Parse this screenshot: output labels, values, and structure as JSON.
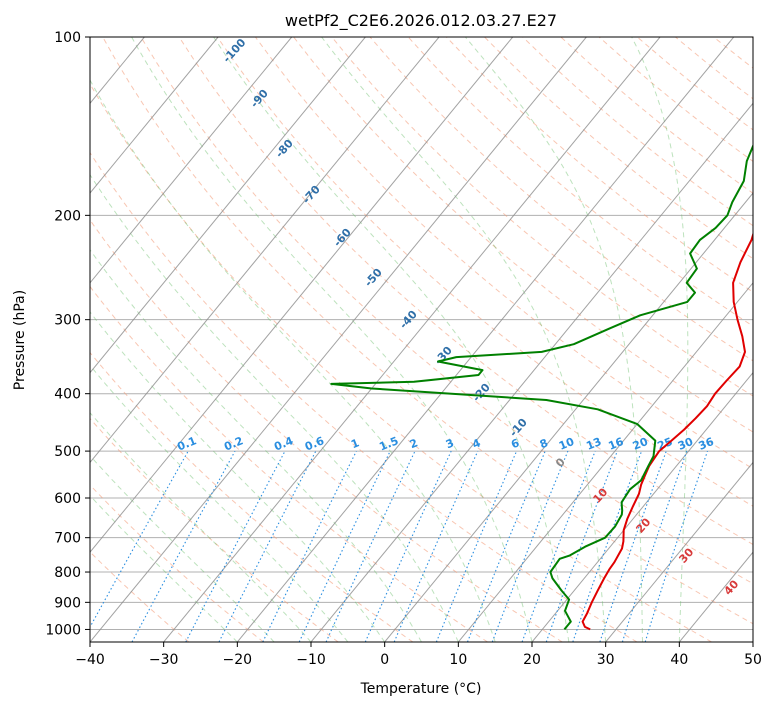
{
  "chart_data": {
    "type": "line",
    "title": "wetPf2_C2E6.2026.012.03.27.E27",
    "xlabel": "Temperature (°C)",
    "ylabel": "Pressure (hPa)",
    "xlim": [
      -40,
      50
    ],
    "ylim": [
      1050,
      100
    ],
    "x_ticks": [
      "−40",
      "−30",
      "−20",
      "−10",
      "0",
      "10",
      "20",
      "30",
      "40",
      "50"
    ],
    "y_ticks": [
      "100",
      "200",
      "300",
      "400",
      "500",
      "600",
      "700",
      "800",
      "900",
      "1000"
    ],
    "series": [
      {
        "name": "Temperature",
        "color": "#e00000",
        "points": [
          [
            26.5,
            1000
          ],
          [
            25.5,
            990
          ],
          [
            24.6,
            970
          ],
          [
            24.3,
            940
          ],
          [
            23.7,
            900
          ],
          [
            23.2,
            860
          ],
          [
            22.7,
            820
          ],
          [
            22.4,
            790
          ],
          [
            22.3,
            770
          ],
          [
            21.8,
            730
          ],
          [
            21.2,
            710
          ],
          [
            20.0,
            680
          ],
          [
            19.2,
            650
          ],
          [
            18.6,
            620
          ],
          [
            18.0,
            590
          ],
          [
            17.3,
            570
          ],
          [
            16.8,
            550
          ],
          [
            16.3,
            530
          ],
          [
            16.0,
            500
          ],
          [
            16.5,
            480
          ],
          [
            17.0,
            460
          ],
          [
            17.3,
            440
          ],
          [
            17.5,
            420
          ],
          [
            17.2,
            400
          ],
          [
            17.3,
            380
          ],
          [
            17.5,
            360
          ],
          [
            16.6,
            340
          ],
          [
            14.5,
            320
          ],
          [
            12.0,
            300
          ],
          [
            9.5,
            280
          ],
          [
            7.3,
            260
          ],
          [
            6.0,
            240
          ],
          [
            5.0,
            220
          ],
          [
            3.3,
            200
          ],
          [
            2.2,
            190
          ],
          [
            0.8,
            175
          ],
          [
            -0.6,
            160
          ],
          [
            -1.3,
            150
          ],
          [
            0.0,
            140
          ],
          [
            1.6,
            130
          ],
          [
            2.3,
            120
          ],
          [
            1.9,
            115
          ],
          [
            1.5,
            110
          ],
          [
            1.1,
            105
          ],
          [
            1.3,
            100
          ]
        ]
      },
      {
        "name": "Dewpoint",
        "color": "#008000",
        "points": [
          [
            23.0,
            1000
          ],
          [
            23.0,
            970
          ],
          [
            22.0,
            950
          ],
          [
            21.0,
            930
          ],
          [
            20.3,
            890
          ],
          [
            18.3,
            860
          ],
          [
            15.7,
            820
          ],
          [
            14.7,
            800
          ],
          [
            14.6,
            780
          ],
          [
            14.5,
            760
          ],
          [
            15.5,
            750
          ],
          [
            16.6,
            725
          ],
          [
            18.3,
            700
          ],
          [
            18.4,
            670
          ],
          [
            18.0,
            640
          ],
          [
            17.6,
            630
          ],
          [
            16.6,
            610
          ],
          [
            16.3,
            580
          ],
          [
            16.8,
            560
          ],
          [
            16.2,
            530
          ],
          [
            15.8,
            510
          ],
          [
            14.3,
            480
          ],
          [
            10.0,
            450
          ],
          [
            3.0,
            425
          ],
          [
            -5.0,
            410
          ],
          [
            -30.0,
            392
          ],
          [
            -36.0,
            385
          ],
          [
            -25.0,
            382
          ],
          [
            -17.0,
            372
          ],
          [
            -17.0,
            365
          ],
          [
            -24.0,
            353
          ],
          [
            -22.0,
            347
          ],
          [
            -11.0,
            340
          ],
          [
            -7.5,
            330
          ],
          [
            -4.3,
            310
          ],
          [
            -1.7,
            295
          ],
          [
            3.2,
            280
          ],
          [
            3.2,
            270
          ],
          [
            1.0,
            260
          ],
          [
            0.8,
            246
          ],
          [
            -1.8,
            232
          ],
          [
            -2.0,
            220
          ],
          [
            -1.2,
            210
          ],
          [
            -1.0,
            200
          ],
          [
            -1.8,
            190
          ],
          [
            -2.6,
            175
          ],
          [
            -4.4,
            162
          ],
          [
            -5.5,
            150
          ],
          [
            -5.8,
            140
          ],
          [
            -4.3,
            130
          ],
          [
            -1.6,
            120
          ],
          [
            -1.5,
            118
          ],
          [
            -2.7,
            115
          ],
          [
            -2.5,
            110
          ],
          [
            0.4,
            108
          ],
          [
            0.6,
            103
          ],
          [
            0.4,
            100
          ]
        ]
      }
    ],
    "mixing_ratio_labels": [
      "0.1",
      "0.2",
      "0.4",
      "0.6",
      "1",
      "1.5",
      "2",
      "3",
      "4",
      "6",
      "8",
      "10",
      "13",
      "16",
      "20",
      "25",
      "30",
      "36"
    ],
    "theta_labels": [
      "-100",
      "-90",
      "-80",
      "-70",
      "-60",
      "-50",
      "-40",
      "-30",
      "-20",
      "-10"
    ],
    "temp_labels": [
      "0",
      "10",
      "20",
      "30",
      "40"
    ]
  }
}
